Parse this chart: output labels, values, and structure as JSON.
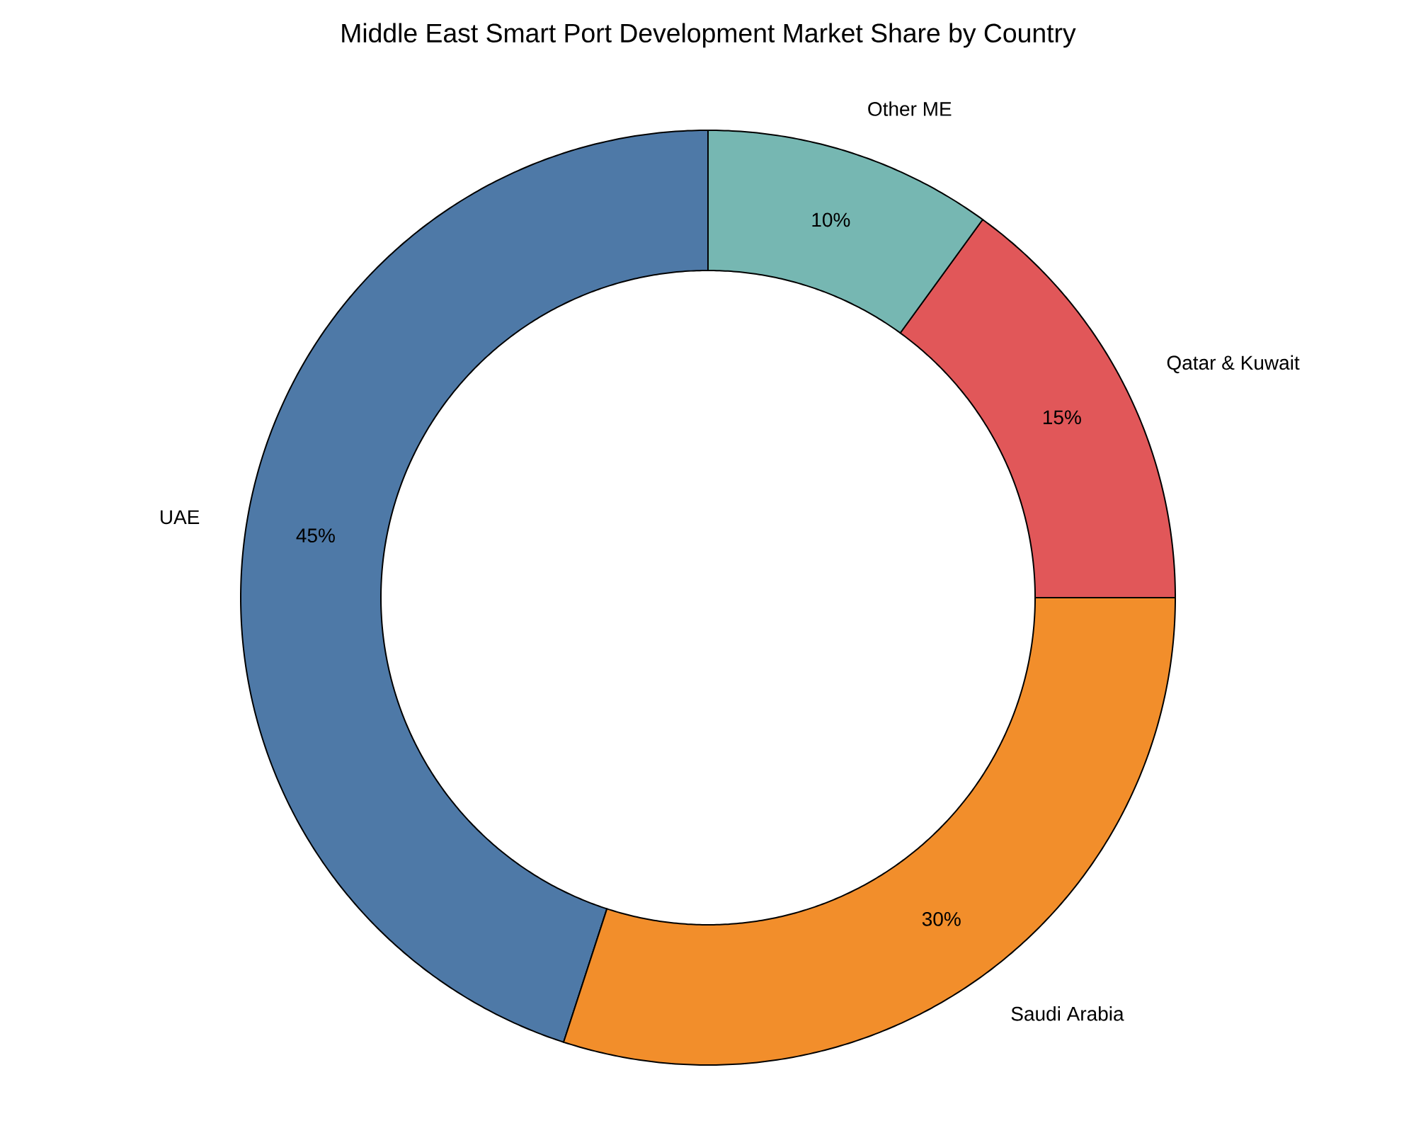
{
  "chart_data": {
    "type": "donut",
    "title": "Middle East Smart Port Development Market Share by Country",
    "categories": [
      "UAE",
      "Saudi Arabia",
      "Qatar & Kuwait",
      "Other ME"
    ],
    "values": [
      45,
      30,
      15,
      10
    ],
    "value_labels": [
      "45%",
      "30%",
      "15%",
      "10%"
    ],
    "colors": [
      "#4e79a7",
      "#f28e2b",
      "#e15759",
      "#76b7b2"
    ]
  }
}
